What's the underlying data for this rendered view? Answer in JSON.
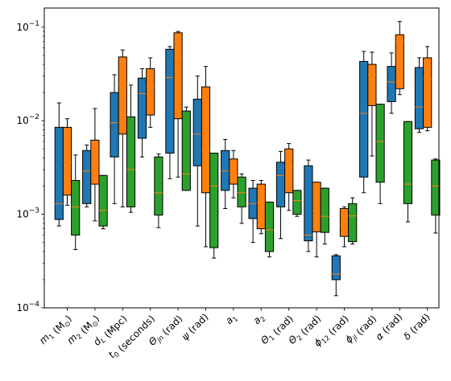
{
  "chart_data": {
    "type": "box",
    "y_scale": "log",
    "ylim": [
      0.0001,
      0.16
    ],
    "y_ticks": [
      {
        "value": 0.0001,
        "base": "10",
        "exp": "−4"
      },
      {
        "value": 0.001,
        "base": "10",
        "exp": "−3"
      },
      {
        "value": 0.01,
        "base": "10",
        "exp": "−2"
      },
      {
        "value": 0.1,
        "base": "10",
        "exp": "−1"
      }
    ],
    "legend": "none",
    "grid": false,
    "colors": [
      "#1f77b4",
      "#ff7f0e",
      "#2ca02c"
    ],
    "median_color": "#ff7f0e",
    "categories": [
      {
        "base": "m",
        "sub": "1",
        "unit": " (M",
        "unit_sub": "⊙",
        "unit_end": ")"
      },
      {
        "base": "m",
        "sub": "2",
        "unit": " (M",
        "unit_sub": "⊙",
        "unit_end": ")"
      },
      {
        "base": "d",
        "sub": "L",
        "unit": " (Mpc)",
        "unit_sub": "",
        "unit_end": ""
      },
      {
        "base": "t",
        "sub": "0",
        "unit": " (seconds)",
        "unit_sub": "",
        "unit_end": ""
      },
      {
        "base": "Θ",
        "sub": "jn",
        "unit": " (rad)",
        "unit_sub": "",
        "unit_end": ""
      },
      {
        "base": "ψ",
        "sub": "",
        "unit": " (rad)",
        "unit_sub": "",
        "unit_end": ""
      },
      {
        "base": "a",
        "sub": "1",
        "unit": "",
        "unit_sub": "",
        "unit_end": ""
      },
      {
        "base": "a",
        "sub": "2",
        "unit": "",
        "unit_sub": "",
        "unit_end": ""
      },
      {
        "base": "Θ",
        "sub": "1",
        "unit": " (rad)",
        "unit_sub": "",
        "unit_end": ""
      },
      {
        "base": "Θ",
        "sub": "2",
        "unit": " (rad)",
        "unit_sub": "",
        "unit_end": ""
      },
      {
        "base": "ϕ",
        "sub": "12",
        "unit": " (rad)",
        "unit_sub": "",
        "unit_end": ""
      },
      {
        "base": "ϕ",
        "sub": "jl",
        "unit": " (rad)",
        "unit_sub": "",
        "unit_end": ""
      },
      {
        "base": "α",
        "sub": "",
        "unit": " (rad)",
        "unit_sub": "",
        "unit_end": ""
      },
      {
        "base": "δ",
        "sub": "",
        "unit": " (rad)",
        "unit_sub": "",
        "unit_end": ""
      }
    ],
    "series": [
      {
        "color": "#1f77b4",
        "boxes": [
          {
            "whislo": 0.00075,
            "q1": 0.00088,
            "med": 0.0013,
            "q3": 0.0085,
            "whishi": 0.0155
          },
          {
            "whislo": 0.0012,
            "q1": 0.0013,
            "med": 0.0029,
            "q3": 0.0048,
            "whishi": 0.0055
          },
          {
            "whislo": 0.0013,
            "q1": 0.0041,
            "med": 0.0095,
            "q3": 0.02,
            "whishi": 0.031
          },
          {
            "whislo": 0.0041,
            "q1": 0.0065,
            "med": 0.0195,
            "q3": 0.0285,
            "whishi": 0.036
          },
          {
            "whislo": 0.0024,
            "q1": 0.0045,
            "med": 0.029,
            "q3": 0.058,
            "whishi": 0.062
          },
          {
            "whislo": 0.00075,
            "q1": 0.0033,
            "med": 0.0072,
            "q3": 0.017,
            "whishi": 0.03
          },
          {
            "whislo": 0.00115,
            "q1": 0.0018,
            "med": 0.0029,
            "q3": 0.0048,
            "whishi": 0.0063
          },
          {
            "whislo": 0.0005,
            "q1": 0.0009,
            "med": 0.0013,
            "q3": 0.0019,
            "whishi": 0.0023
          },
          {
            "whislo": 0.00055,
            "q1": 0.0012,
            "med": 0.0026,
            "q3": 0.0036,
            "whishi": 0.0047
          },
          {
            "whislo": 0.0004,
            "q1": 0.00052,
            "med": 0.0006,
            "q3": 0.0033,
            "whishi": 0.0038
          },
          {
            "whislo": 0.000135,
            "q1": 0.0002,
            "med": 0.00023,
            "q3": 0.00036,
            "whishi": 0.00037
          },
          {
            "whislo": 0.0017,
            "q1": 0.0025,
            "med": 0.012,
            "q3": 0.043,
            "whishi": 0.055
          },
          {
            "whislo": 0.012,
            "q1": 0.016,
            "med": 0.026,
            "q3": 0.038,
            "whishi": 0.053
          },
          {
            "whislo": 0.0075,
            "q1": 0.0082,
            "med": 0.014,
            "q3": 0.037,
            "whishi": 0.047
          }
        ]
      },
      {
        "color": "#ff7f0e",
        "boxes": [
          {
            "whislo": 0.00125,
            "q1": 0.0016,
            "med": 0.0036,
            "q3": 0.0085,
            "whishi": 0.0105
          },
          {
            "whislo": 0.00085,
            "q1": 0.0021,
            "med": 0.0035,
            "q3": 0.0062,
            "whishi": 0.0135
          },
          {
            "whislo": 0.0012,
            "q1": 0.0072,
            "med": 0.025,
            "q3": 0.048,
            "whishi": 0.057
          },
          {
            "whislo": 0.0085,
            "q1": 0.0115,
            "med": 0.023,
            "q3": 0.036,
            "whishi": 0.047
          },
          {
            "whislo": 0.0025,
            "q1": 0.0105,
            "med": 0.047,
            "q3": 0.087,
            "whishi": 0.09
          },
          {
            "whislo": 0.00045,
            "q1": 0.0017,
            "med": 0.0048,
            "q3": 0.023,
            "whishi": 0.038
          },
          {
            "whislo": 0.0015,
            "q1": 0.0021,
            "med": 0.0026,
            "q3": 0.0039,
            "whishi": 0.0048
          },
          {
            "whislo": 0.00062,
            "q1": 0.0007,
            "med": 0.00135,
            "q3": 0.0021,
            "whishi": 0.0023
          },
          {
            "whislo": 0.0011,
            "q1": 0.0017,
            "med": 0.0032,
            "q3": 0.005,
            "whishi": 0.0057
          },
          {
            "whislo": 0.00035,
            "q1": 0.00065,
            "med": 0.0011,
            "q3": 0.0022,
            "whishi": 0.0022
          },
          {
            "whislo": 0.00045,
            "q1": 0.00058,
            "med": 0.00075,
            "q3": 0.00115,
            "whishi": 0.0012
          },
          {
            "whislo": 0.0042,
            "q1": 0.0145,
            "med": 0.031,
            "q3": 0.04,
            "whishi": 0.054
          },
          {
            "whislo": 0.019,
            "q1": 0.022,
            "med": 0.07,
            "q3": 0.083,
            "whishi": 0.115
          },
          {
            "whislo": 0.0078,
            "q1": 0.0085,
            "med": 0.028,
            "q3": 0.047,
            "whishi": 0.062
          }
        ]
      },
      {
        "color": "#2ca02c",
        "boxes": [
          {
            "whislo": 0.00042,
            "q1": 0.0006,
            "med": 0.0012,
            "q3": 0.0023,
            "whishi": 0.0043
          },
          {
            "whislo": 0.0007,
            "q1": 0.00075,
            "med": 0.0011,
            "q3": 0.0026,
            "whishi": 0.0026
          },
          {
            "whislo": 0.00105,
            "q1": 0.0012,
            "med": 0.003,
            "q3": 0.011,
            "whishi": 0.024
          },
          {
            "whislo": 0.00072,
            "q1": 0.00098,
            "med": 0.0017,
            "q3": 0.0041,
            "whishi": 0.0044
          },
          {
            "whislo": 0.0018,
            "q1": 0.0018,
            "med": 0.0027,
            "q3": 0.0127,
            "whishi": 0.014
          },
          {
            "whislo": 0.00034,
            "q1": 0.00044,
            "med": 0.002,
            "q3": 0.0045,
            "whishi": 0.0045
          },
          {
            "whislo": 0.0008,
            "q1": 0.0012,
            "med": 0.0017,
            "q3": 0.0025,
            "whishi": 0.0027
          },
          {
            "whislo": 0.00035,
            "q1": 0.0004,
            "med": 0.00068,
            "q3": 0.00135,
            "whishi": 0.00135
          },
          {
            "whislo": 0.00095,
            "q1": 0.001,
            "med": 0.0014,
            "q3": 0.0018,
            "whishi": 0.0018
          },
          {
            "whislo": 0.00048,
            "q1": 0.00064,
            "med": 0.00095,
            "q3": 0.0019,
            "whishi": 0.0019
          },
          {
            "whislo": 0.00048,
            "q1": 0.00051,
            "med": 0.00096,
            "q3": 0.0013,
            "whishi": 0.0015
          },
          {
            "whislo": 0.0013,
            "q1": 0.0022,
            "med": 0.006,
            "q3": 0.015,
            "whishi": 0.015
          },
          {
            "whislo": 0.00083,
            "q1": 0.0013,
            "med": 0.0021,
            "q3": 0.0098,
            "whishi": 0.0098
          },
          {
            "whislo": 0.00063,
            "q1": 0.00098,
            "med": 0.002,
            "q3": 0.0038,
            "whishi": 0.0039
          }
        ]
      }
    ]
  }
}
